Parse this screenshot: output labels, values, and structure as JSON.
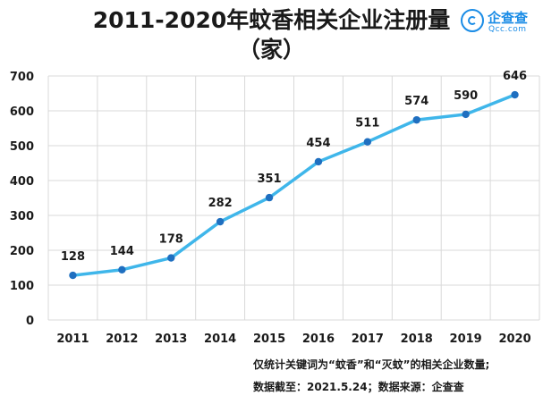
{
  "title": {
    "line1": "2011-2020年蚊香相关企业注册量",
    "line2": "（家）"
  },
  "logo": {
    "name": "企查查",
    "domain": "Qcc.com"
  },
  "footnotes": {
    "line1": "仅统计关键词为“蚊香”和“灭蚊”的相关企业数量;",
    "line2": "数据截至：2021.5.24；数据来源：企查查"
  },
  "colors": {
    "line": "#3fb6ea",
    "marker": "#1f6fc0",
    "grid": "#d9d9d9",
    "brand": "#1a8ce6"
  },
  "chart_data": {
    "type": "line",
    "categories": [
      "2011",
      "2012",
      "2013",
      "2014",
      "2015",
      "2016",
      "2017",
      "2018",
      "2019",
      "2020"
    ],
    "series": [
      {
        "values": [
          128,
          144,
          178,
          282,
          351,
          454,
          511,
          574,
          590,
          646
        ]
      }
    ],
    "ylim": [
      0,
      700
    ],
    "yticks": [
      0,
      100,
      200,
      300,
      400,
      500,
      600,
      700
    ],
    "grid": true,
    "data_labels": true
  }
}
